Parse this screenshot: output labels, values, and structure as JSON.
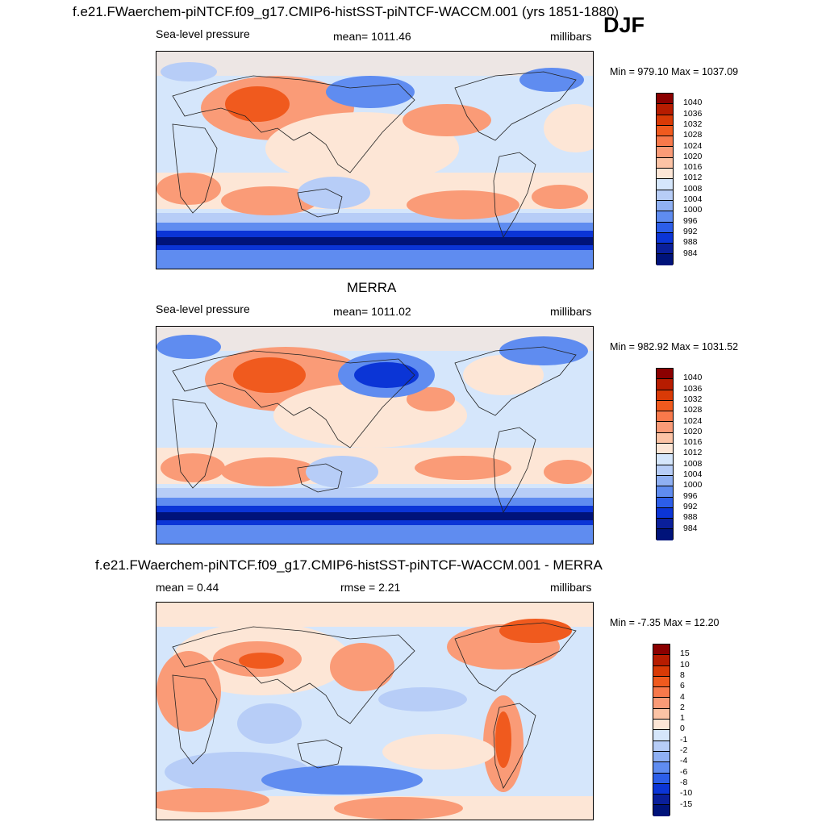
{
  "header": {
    "title": "f.e21.FWaerchem-piNTCF.f09_g17.CMIP6-histSST-piNTCF-WACCM.001 (yrs 1851-1880)",
    "season": "DJF"
  },
  "panels": [
    {
      "id": "model",
      "title": "",
      "left_label": "Sea-level pressure",
      "center_label": "mean= 1011.46",
      "right_label": "millibars",
      "minmax": "Min = 979.10 Max = 1037.09"
    },
    {
      "id": "obs",
      "title": "MERRA",
      "left_label": "Sea-level pressure",
      "center_label": "mean= 1011.02",
      "right_label": "millibars",
      "minmax": "Min = 982.92 Max = 1031.52"
    },
    {
      "id": "diff",
      "title": "f.e21.FWaerchem-piNTCF.f09_g17.CMIP6-histSST-piNTCF-WACCM.001 - MERRA",
      "left_label": "mean =   0.44",
      "center_label": "rmse =   2.21",
      "right_label": "millibars",
      "minmax": "Min =  -7.35 Max =  12.20"
    }
  ],
  "colorbars": {
    "slp": {
      "labels": [
        "1040",
        "1036",
        "1032",
        "1028",
        "1024",
        "1020",
        "1016",
        "1012",
        "1008",
        "1004",
        "1000",
        "996",
        "992",
        "988",
        "984"
      ],
      "colors": [
        "#8b0000",
        "#b71c00",
        "#d93a06",
        "#f05a1e",
        "#f8794b",
        "#fa9b77",
        "#fcc3a5",
        "#fde6d6",
        "#d5e6fb",
        "#b7cdf7",
        "#8fb0f3",
        "#5f8cf0",
        "#2c5ee9",
        "#0b35d6",
        "#0a1f9a",
        "#00137a"
      ]
    },
    "diff": {
      "labels": [
        "15",
        "10",
        "8",
        "6",
        "4",
        "2",
        "1",
        "0",
        "-1",
        "-2",
        "-4",
        "-6",
        "-8",
        "-10",
        "-15"
      ],
      "colors": [
        "#8b0000",
        "#b71c00",
        "#d93a06",
        "#f05a1e",
        "#f8794b",
        "#fa9b77",
        "#fcc3a5",
        "#fde6d6",
        "#d5e6fb",
        "#b7cdf7",
        "#8fb0f3",
        "#5f8cf0",
        "#2c5ee9",
        "#0b35d6",
        "#0a1f9a",
        "#00137a"
      ]
    }
  },
  "map_colors": {
    "ocean_neutral": "#d5e6fb",
    "high_light": "#fde6d6",
    "high_mid": "#fa9b77",
    "high_strong": "#f05a1e",
    "low_light": "#b7cdf7",
    "low_mid": "#5f8cf0",
    "low_strong": "#0b35d6",
    "low_deep": "#00137a",
    "coast": "#222222"
  }
}
